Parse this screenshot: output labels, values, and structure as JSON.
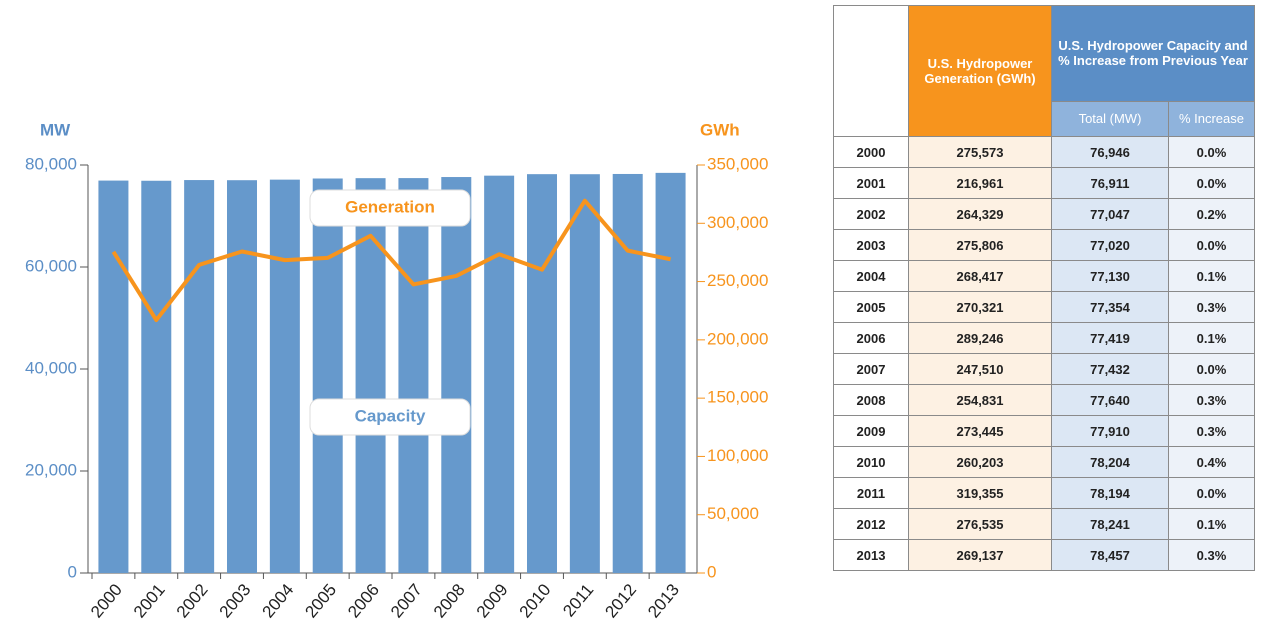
{
  "chart_data": {
    "type": "bar",
    "categories": [
      "2000",
      "2001",
      "2002",
      "2003",
      "2004",
      "2005",
      "2006",
      "2007",
      "2008",
      "2009",
      "2010",
      "2011",
      "2012",
      "2013"
    ],
    "series": [
      {
        "name": "Capacity",
        "type": "bar",
        "axis": "y",
        "color": "#6699cc",
        "values": [
          76946,
          76911,
          77047,
          77020,
          77130,
          77354,
          77419,
          77432,
          77640,
          77910,
          78204,
          78194,
          78241,
          78457
        ]
      },
      {
        "name": "Generation",
        "type": "line",
        "axis": "y2",
        "color": "#f7941d",
        "values": [
          275573,
          216961,
          264329,
          275806,
          268417,
          270321,
          289246,
          247510,
          254831,
          273445,
          260203,
          319355,
          276535,
          269137
        ]
      }
    ],
    "y_label": "MW",
    "y2_label": "GWh",
    "ylim": [
      0,
      80000
    ],
    "yticks": [
      0,
      {
        "value": 20000,
        "label": "20,000"
      },
      {
        "value": 40000,
        "label": "40,000"
      },
      {
        "value": 60000,
        "label": "60,000"
      },
      {
        "value": 80000,
        "label": "80,000"
      }
    ],
    "y2lim": [
      0,
      350000
    ],
    "y2ticks": [
      0,
      {
        "value": 50000,
        "label": "50,000"
      },
      {
        "value": 100000,
        "label": "100,000"
      },
      {
        "value": 150000,
        "label": "150,000"
      },
      {
        "value": 200000,
        "label": "200,000"
      },
      {
        "value": 250000,
        "label": "250,000"
      },
      {
        "value": 300000,
        "label": "300,000"
      },
      {
        "value": 350000,
        "label": "350,000"
      }
    ],
    "grid": false
  },
  "table": {
    "header": {
      "generation": "U.S. Hydropower Generation (GWh)",
      "capacity": "U.S. Hydropower Capacity and % Increase from Previous Year",
      "total": "Total (MW)",
      "increase": "% Increase"
    },
    "rows": [
      [
        "2000",
        "275,573",
        "76,946",
        "0.0%"
      ],
      [
        "2001",
        "216,961",
        "76,911",
        "0.0%"
      ],
      [
        "2002",
        "264,329",
        "77,047",
        "0.2%"
      ],
      [
        "2003",
        "275,806",
        "77,020",
        "0.0%"
      ],
      [
        "2004",
        "268,417",
        "77,130",
        "0.1%"
      ],
      [
        "2005",
        "270,321",
        "77,354",
        "0.3%"
      ],
      [
        "2006",
        "289,246",
        "77,419",
        "0.1%"
      ],
      [
        "2007",
        "247,510",
        "77,432",
        "0.0%"
      ],
      [
        "2008",
        "254,831",
        "77,640",
        "0.3%"
      ],
      [
        "2009",
        "273,445",
        "77,910",
        "0.3%"
      ],
      [
        "2010",
        "260,203",
        "78,204",
        "0.4%"
      ],
      [
        "2011",
        "319,355",
        "78,194",
        "0.0%"
      ],
      [
        "2012",
        "276,535",
        "78,241",
        "0.1%"
      ],
      [
        "2013",
        "269,137",
        "78,457",
        "0.3%"
      ]
    ]
  }
}
